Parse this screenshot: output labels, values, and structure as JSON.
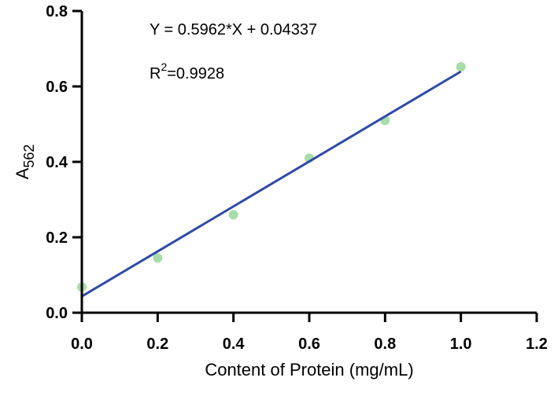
{
  "chart_data": {
    "type": "scatter",
    "xlabel": "Content of Protein (mg/mL)",
    "ylabel_main": "A",
    "ylabel_sub": "562",
    "xlim": [
      0,
      1.2
    ],
    "ylim": [
      0,
      0.8
    ],
    "xticks": [
      "0.0",
      "0.2",
      "0.4",
      "0.6",
      "0.8",
      "1.0",
      "1.2"
    ],
    "yticks": [
      "0.0",
      "0.2",
      "0.4",
      "0.6",
      "0.8"
    ],
    "series": [
      {
        "x": [
          0.0,
          0.2,
          0.4,
          0.6,
          0.8,
          1.0
        ],
        "y": [
          0.068,
          0.145,
          0.26,
          0.41,
          0.51,
          0.652
        ],
        "color": "#a8dca8"
      }
    ],
    "fit": {
      "slope": 0.5962,
      "intercept": 0.04337,
      "x_range": [
        0.0,
        1.0
      ],
      "color": "#2f4aa6"
    },
    "equation_label": "Y = 0.5962*X + 0.04337",
    "r2_label_main": "R",
    "r2_label_sup": "2",
    "r2_label_value": "=0.9928",
    "grid": false
  }
}
